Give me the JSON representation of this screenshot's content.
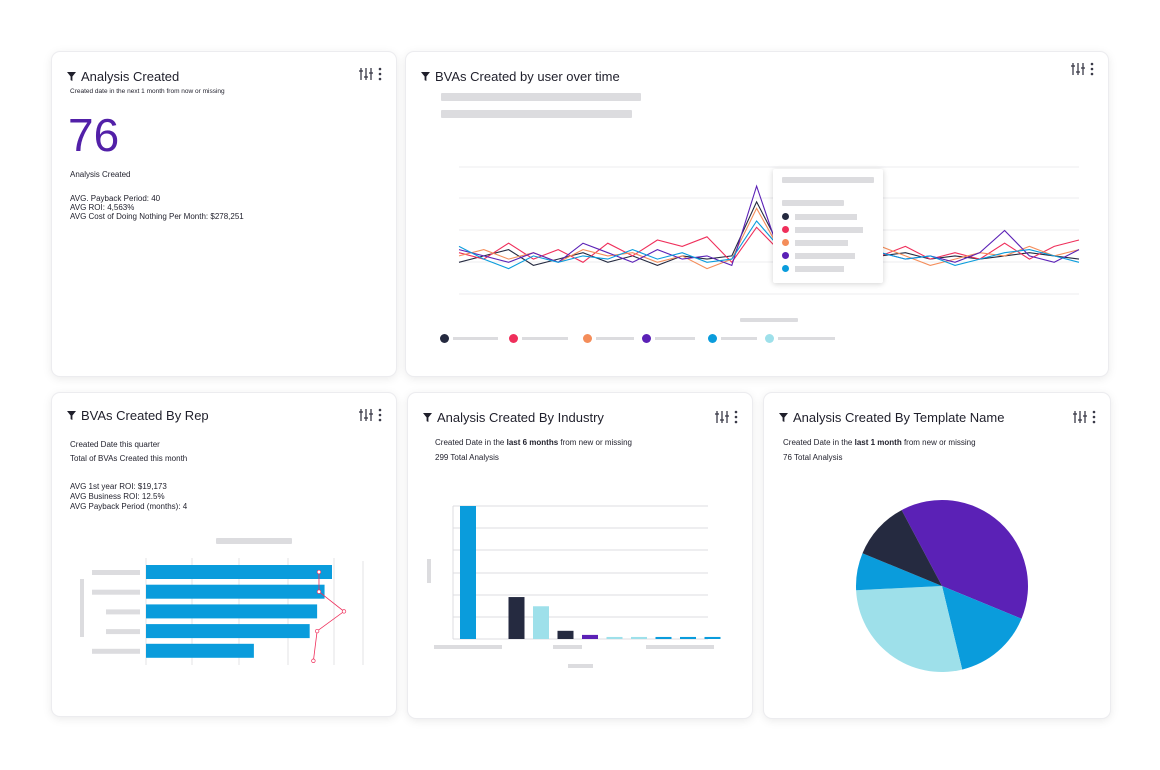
{
  "colors": {
    "purple": "#5b21b6",
    "navy": "#252a40",
    "blue": "#0a9cdc",
    "lightblue": "#9ee0ea",
    "red": "#ef2f5b",
    "orange": "#f48d5a",
    "placeholder": "#dcdcdf",
    "kpi": "#5220a8"
  },
  "icons": {
    "filter": "filter-icon",
    "settings": "sliders-icon",
    "more": "kebab-menu-icon"
  },
  "kpi_card": {
    "title": "Analysis Created",
    "subtitle": "Created date in the next 1 month from now or missing",
    "value": "76",
    "value_label": "Analysis Created",
    "metrics": [
      "AVG. Payback Period: 40",
      "AVG ROI: 4,563%",
      "AVG Cost of Doing Nothing Per Month: $278,251"
    ]
  },
  "line_card": {
    "title": "BVAs Created by user over time"
  },
  "rep_card": {
    "title": "BVAs Created By Rep",
    "line1": "Created Date this quarter",
    "line2": "Total of BVAs Created this month",
    "metrics": [
      "AVG 1st year ROI: $19,173",
      "AVG Business ROI: 12.5%",
      "AVG Payback Period (months): 4"
    ]
  },
  "industry_card": {
    "title": "Analysis Created By Industry",
    "line1_prefix": "Created Date in the ",
    "line1_bold": "last 6 months",
    "line1_suffix": " from new or missing",
    "line2": "299 Total Analysis"
  },
  "template_card": {
    "title": "Analysis Created By Template Name",
    "line1_prefix": "Created Date in the ",
    "line1_bold": "last 1 month",
    "line1_suffix": " from new or missing",
    "line2": "76 Total Analysis"
  },
  "chart_data": [
    {
      "type": "line",
      "title": "BVAs Created by user over time",
      "x": [
        1,
        2,
        3,
        4,
        5,
        6,
        7,
        8,
        9,
        10,
        11,
        12,
        13,
        14,
        15,
        16,
        17,
        18,
        19,
        20,
        21,
        22,
        23,
        24,
        25,
        26
      ],
      "series": [
        {
          "color": "#252a40",
          "values": [
            40,
            44,
            48,
            38,
            42,
            46,
            40,
            44,
            38,
            44,
            42,
            44,
            78,
            48,
            46,
            44,
            42,
            44,
            46,
            42,
            44,
            42,
            44,
            46,
            44,
            42
          ]
        },
        {
          "color": "#ef2f5b",
          "values": [
            46,
            42,
            52,
            42,
            48,
            40,
            52,
            44,
            54,
            50,
            56,
            40,
            62,
            46,
            52,
            42,
            48,
            44,
            50,
            42,
            46,
            42,
            52,
            42,
            50,
            54
          ]
        },
        {
          "color": "#f48d5a",
          "values": [
            44,
            48,
            42,
            46,
            40,
            48,
            44,
            46,
            40,
            44,
            36,
            42,
            74,
            46,
            44,
            48,
            42,
            50,
            44,
            38,
            42,
            46,
            44,
            50,
            44,
            48
          ]
        },
        {
          "color": "#5b21b6",
          "values": [
            48,
            44,
            40,
            46,
            40,
            52,
            46,
            40,
            48,
            42,
            44,
            38,
            88,
            42,
            46,
            48,
            44,
            46,
            42,
            44,
            40,
            46,
            60,
            44,
            40,
            48
          ]
        },
        {
          "color": "#0a9cdc",
          "values": [
            50,
            42,
            36,
            44,
            40,
            44,
            42,
            48,
            42,
            46,
            40,
            42,
            66,
            48,
            44,
            46,
            40,
            46,
            42,
            44,
            38,
            42,
            46,
            48,
            44,
            40
          ]
        }
      ]
    },
    {
      "type": "bar",
      "orientation": "horizontal",
      "title": "BVAs Created By Rep",
      "values": [
        100,
        96,
        92,
        88,
        58
      ],
      "line_values": [
        93,
        93,
        100,
        92,
        90
      ],
      "color": "#0a9cdc"
    },
    {
      "type": "bar",
      "title": "Analysis Created By Industry",
      "values": [
        130,
        41,
        32,
        8,
        4,
        2,
        2,
        2,
        2,
        2
      ],
      "colors": [
        "#0a9cdc",
        "#252a40",
        "#9ee0ea",
        "#252a40",
        "#5b21b6",
        "#9ee0ea",
        "#9ee0ea",
        "#0a9cdc",
        "#0a9cdc",
        "#0a9cdc"
      ]
    },
    {
      "type": "pie",
      "title": "Analysis Created By Template Name",
      "slices": [
        {
          "value": 39,
          "color": "#5b21b6"
        },
        {
          "value": 15,
          "color": "#0a9cdc"
        },
        {
          "value": 28,
          "color": "#9ee0ea"
        },
        {
          "value": 7,
          "color": "#0a9cdc"
        },
        {
          "value": 11,
          "color": "#252a40"
        }
      ]
    }
  ]
}
